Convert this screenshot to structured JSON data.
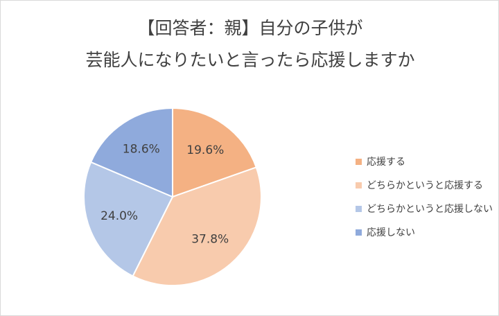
{
  "chart_data": {
    "type": "pie",
    "title": [
      "【回答者：親】自分の子供が",
      "芸能人になりたいと言ったら応援しますか"
    ],
    "categories": [
      "応援する",
      "どちらかというと応援する",
      "どちらかというと応援しない",
      "応援しない"
    ],
    "values": [
      19.6,
      37.8,
      24.0,
      18.6
    ],
    "value_labels": [
      "19.6%",
      "37.8%",
      "24.0%",
      "18.6%"
    ],
    "colors": [
      "#F4B183",
      "#F8CBAD",
      "#B4C7E7",
      "#8FAADC"
    ],
    "start_angle": "12 o'clock",
    "direction": "clockwise",
    "legend_position": "right"
  }
}
